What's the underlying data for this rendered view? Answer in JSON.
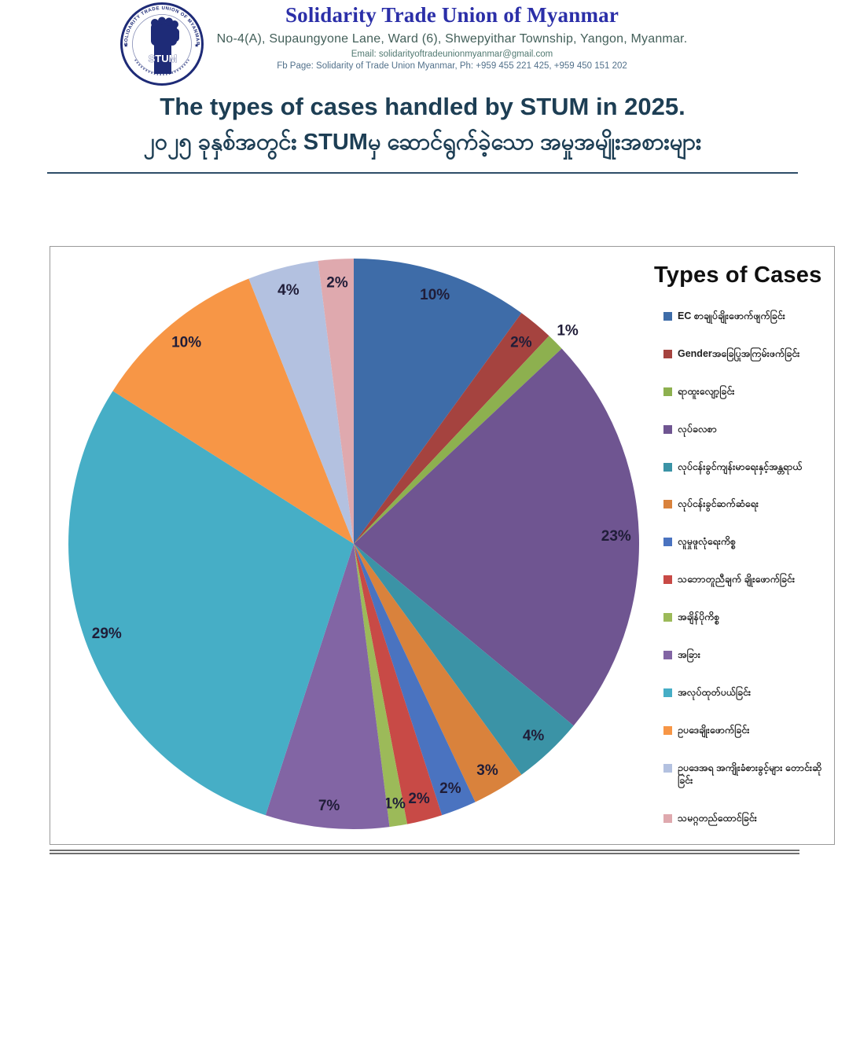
{
  "header": {
    "org_name": "Solidarity Trade Union of Myanmar",
    "address": "No-4(A), Supaungyone Lane, Ward (6), Shwepyithar Township, Yangon, Myanmar.",
    "email_line": "Email: solidarityoftradeunionmyanmar@gmail.com",
    "fb_line": "Fb Page: Solidarity of Trade Union Myanmar, Ph: +959 455 221 425, +959 450 151 202",
    "logo": {
      "acronym": "STUM",
      "ring_text": "SOLIDARITY TRADE UNION OF MYANMAR"
    }
  },
  "title": {
    "english": "The types of cases handled by STUM in 2025.",
    "burmese": "၂၀၂၅ ခုနှစ်အတွင်း STUMမှ ဆောင်ရွက်ခဲ့သော အမှုအမျိုးအစားများ"
  },
  "chart_data": {
    "type": "pie",
    "title": "Types of Cases",
    "legend_position": "right",
    "start_angle_deg": 0,
    "direction": "clockwise",
    "unit": "percent",
    "categories": [
      "EC စာချုပ်ချိုးဖောက်ဖျက်ခြင်း",
      "Genderအခြေပြုအကြမ်းဖက်ခြင်း",
      "ရာထူးလျော့ခြင်း",
      "လုပ်ခလစာ",
      "လုပ်ငန်းခွင်ကျန်းမာရေးနှင့်အန္တရာယ်",
      "လုပ်ငန်းခွင်ဆက်ဆံရေး",
      "လူမှုဖူလုံရေးကိစ္စ",
      "သဘောတူညီချက် ချိုးဖောက်ခြင်း",
      "အချိန်ပိုကိစ္စ",
      "အခြား",
      "အလုပ်ထုတ်ပယ်ခြင်း",
      "ဥပဒေချိုးဖောက်ခြင်း",
      "ဥပဒေအရ အကျိုးခံစားခွင့်များ တောင်းဆိုခြင်း",
      "သမဂ္ဂတည်ထောင်ခြင်း"
    ],
    "values": [
      10,
      2,
      1,
      23,
      4,
      3,
      2,
      2,
      1,
      7,
      29,
      10,
      4,
      2
    ],
    "labels": [
      "10%",
      "2%",
      "1%",
      "23%",
      "4%",
      "3%",
      "2%",
      "2%",
      "1%",
      "7%",
      "29%",
      "10%",
      "4%",
      "2%"
    ],
    "colors": [
      "#3E6CA8",
      "#A5433F",
      "#8DB04F",
      "#6F5591",
      "#3B93A6",
      "#D9823C",
      "#4A73C0",
      "#C84A46",
      "#9CBA59",
      "#8265A4",
      "#46AEC6",
      "#F79646",
      "#B3C1E0",
      "#DFA9AE"
    ]
  },
  "theme": {
    "org_name_blue": "#2B2FA8",
    "heading_color": "#1D3E54",
    "data_label_color": "#201D38",
    "legend_text_color": "#1F1F1F",
    "chart_box_border": "#9A9A9A",
    "rule_color": "#6F6F6F",
    "logo_navy": "#1E2B77"
  }
}
